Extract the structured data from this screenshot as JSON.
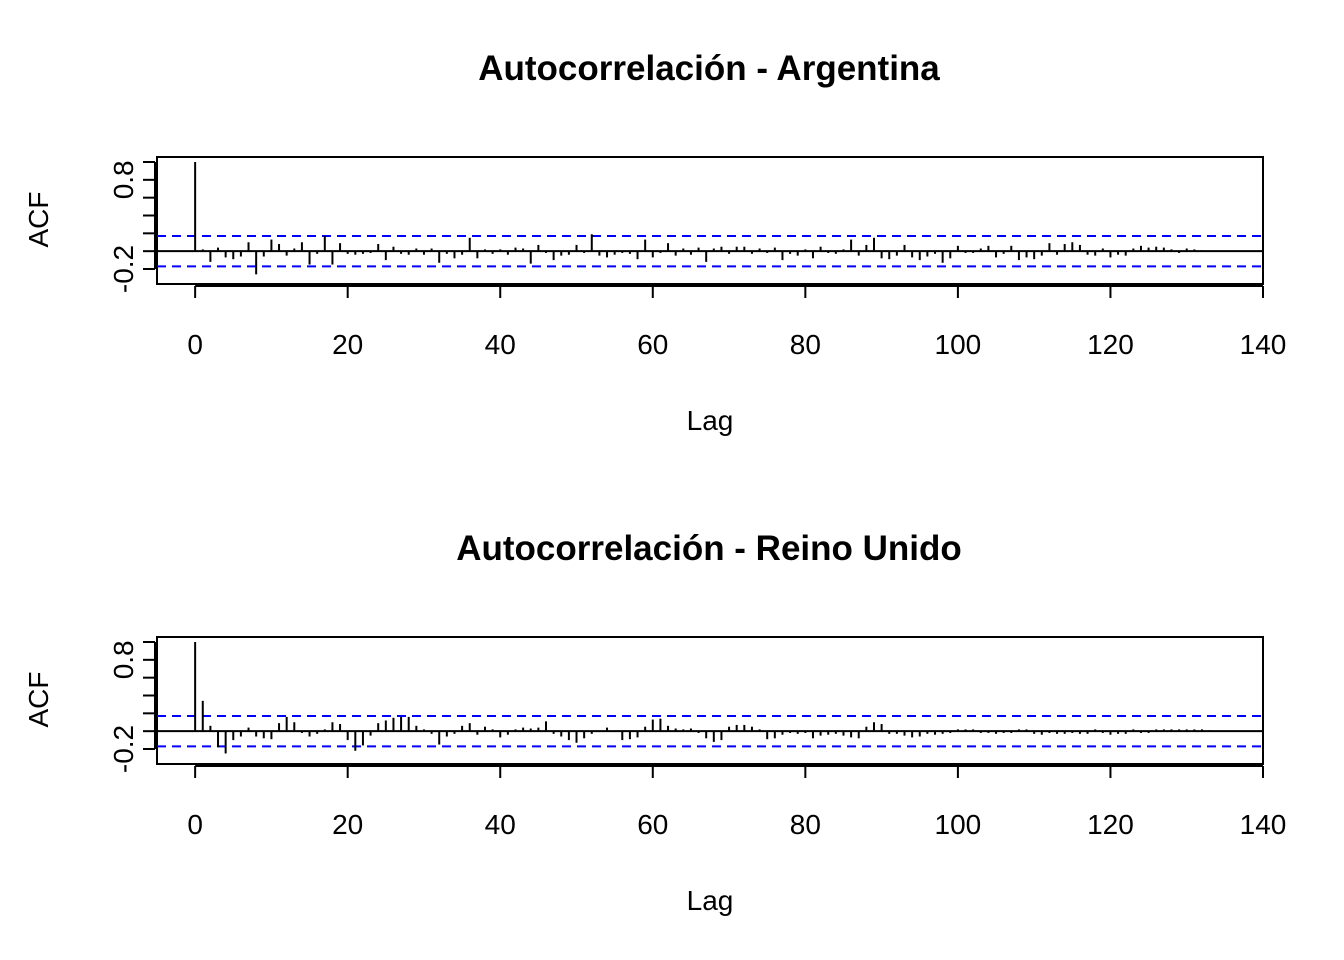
{
  "chart_data": [
    {
      "type": "bar",
      "title": "Autocorrelación - Argentina",
      "xlabel": "Lag",
      "ylabel": "ACF",
      "xlim": [
        -5,
        140
      ],
      "ylim": [
        -0.2,
        1.0
      ],
      "x_ticks": [
        "0",
        "20",
        "40",
        "60",
        "80",
        "100",
        "120",
        "140"
      ],
      "y_ticks": [
        "-0.2",
        "0.8"
      ],
      "y_minor_ticks": [
        0.0,
        0.2,
        0.4,
        0.6,
        1.0
      ],
      "grid": false,
      "zero_line": true,
      "ci_level": 0.17,
      "ci_color": "#0000ff",
      "series": [
        {
          "lags": [
            0,
            1,
            2,
            3,
            4,
            5,
            6,
            7,
            8,
            9,
            10,
            11,
            12,
            13,
            14,
            15,
            16,
            17,
            18,
            19,
            20,
            21,
            22,
            23,
            24,
            25,
            26,
            27,
            28,
            29,
            30,
            31,
            32,
            33,
            34,
            35,
            36,
            37,
            38,
            39,
            40,
            41,
            42,
            43,
            44,
            45,
            46,
            47,
            48,
            49,
            50,
            51,
            52,
            53,
            54,
            55,
            56,
            57,
            58,
            59,
            60,
            61,
            62,
            63,
            64,
            65,
            66,
            67,
            68,
            69,
            70,
            71,
            72,
            73,
            74,
            75,
            76,
            77,
            78,
            79,
            80,
            81,
            82,
            83,
            84,
            85,
            86,
            87,
            88,
            89,
            90,
            91,
            92,
            93,
            94,
            95,
            96,
            97,
            98,
            99,
            100,
            101,
            102,
            103,
            104,
            105,
            106,
            107,
            108,
            109,
            110,
            111,
            112,
            113,
            114,
            115,
            116,
            117,
            118,
            119,
            120,
            121,
            122,
            123,
            124,
            125,
            126,
            127,
            128,
            129,
            130,
            131,
            132
          ],
          "values": [
            1.0,
            0.02,
            -0.12,
            0.04,
            -0.07,
            -0.09,
            -0.06,
            0.1,
            -0.26,
            -0.06,
            0.13,
            0.08,
            -0.05,
            0.03,
            0.1,
            -0.15,
            -0.03,
            0.17,
            -0.15,
            0.09,
            -0.03,
            -0.04,
            -0.03,
            -0.02,
            0.08,
            -0.1,
            0.05,
            -0.03,
            -0.04,
            0.03,
            -0.04,
            0.03,
            -0.13,
            -0.03,
            -0.08,
            -0.04,
            0.15,
            -0.08,
            0.02,
            -0.03,
            0.02,
            -0.04,
            0.04,
            0.03,
            -0.14,
            0.07,
            -0.02,
            -0.1,
            -0.05,
            -0.04,
            0.07,
            -0.02,
            0.19,
            -0.05,
            -0.07,
            -0.04,
            -0.02,
            -0.03,
            -0.09,
            0.13,
            -0.07,
            -0.02,
            0.09,
            -0.05,
            0.03,
            -0.04,
            0.04,
            -0.12,
            0.03,
            0.05,
            -0.03,
            0.05,
            0.05,
            -0.03,
            0.03,
            -0.02,
            0.04,
            -0.1,
            -0.03,
            -0.05,
            0.02,
            -0.08,
            0.05,
            -0.02,
            -0.03,
            0.02,
            0.13,
            -0.05,
            0.07,
            0.15,
            -0.08,
            -0.09,
            -0.05,
            0.07,
            -0.07,
            -0.1,
            -0.06,
            -0.03,
            -0.13,
            -0.08,
            0.06,
            -0.02,
            -0.02,
            0.03,
            0.06,
            -0.07,
            -0.03,
            0.06,
            -0.1,
            -0.07,
            -0.09,
            -0.05,
            0.09,
            -0.04,
            0.08,
            0.1,
            0.07,
            -0.04,
            -0.05,
            0.03,
            -0.07,
            -0.04,
            -0.05,
            0.03,
            0.06,
            0.04,
            0.05,
            0.04,
            0.02,
            -0.02,
            0.03,
            0.02,
            0.01
          ]
        }
      ]
    },
    {
      "type": "bar",
      "title": "Autocorrelación - Reino Unido",
      "xlabel": "Lag",
      "ylabel": "ACF",
      "xlim": [
        -5,
        140
      ],
      "ylim": [
        -0.2,
        1.0
      ],
      "x_ticks": [
        "0",
        "20",
        "40",
        "60",
        "80",
        "100",
        "120",
        "140"
      ],
      "y_ticks": [
        "-0.2",
        "0.8"
      ],
      "y_minor_ticks": [
        0.0,
        0.2,
        0.4,
        0.6,
        1.0
      ],
      "grid": false,
      "zero_line": true,
      "ci_level": 0.17,
      "ci_color": "#0000ff",
      "series": [
        {
          "lags": [
            0,
            1,
            2,
            3,
            4,
            5,
            6,
            7,
            8,
            9,
            10,
            11,
            12,
            13,
            14,
            15,
            16,
            17,
            18,
            19,
            20,
            21,
            22,
            23,
            24,
            25,
            26,
            27,
            28,
            29,
            30,
            31,
            32,
            33,
            34,
            35,
            36,
            37,
            38,
            39,
            40,
            41,
            42,
            43,
            44,
            45,
            46,
            47,
            48,
            49,
            50,
            51,
            52,
            53,
            54,
            55,
            56,
            57,
            58,
            59,
            60,
            61,
            62,
            63,
            64,
            65,
            66,
            67,
            68,
            69,
            70,
            71,
            72,
            73,
            74,
            75,
            76,
            77,
            78,
            79,
            80,
            81,
            82,
            83,
            84,
            85,
            86,
            87,
            88,
            89,
            90,
            91,
            92,
            93,
            94,
            95,
            96,
            97,
            98,
            99,
            100,
            101,
            102,
            103,
            104,
            105,
            106,
            107,
            108,
            109,
            110,
            111,
            112,
            113,
            114,
            115,
            116,
            117,
            118,
            119,
            120,
            121,
            122,
            123,
            124,
            125,
            126,
            127,
            128,
            129,
            130,
            131,
            132,
            133
          ],
          "values": [
            1.0,
            0.34,
            0.06,
            -0.18,
            -0.25,
            -0.1,
            -0.06,
            0.04,
            -0.06,
            -0.08,
            -0.09,
            0.09,
            0.16,
            0.1,
            -0.02,
            -0.06,
            -0.03,
            0.02,
            0.1,
            0.08,
            -0.1,
            -0.22,
            -0.16,
            -0.05,
            0.09,
            0.12,
            0.15,
            0.16,
            0.16,
            0.06,
            0.02,
            -0.03,
            -0.15,
            -0.06,
            -0.03,
            0.06,
            0.09,
            -0.04,
            0.05,
            0.02,
            -0.07,
            -0.04,
            0.02,
            0.04,
            0.03,
            0.04,
            0.11,
            -0.03,
            -0.06,
            -0.1,
            -0.13,
            -0.08,
            -0.03,
            -0.01,
            0.04,
            -0.01,
            -0.1,
            -0.09,
            -0.07,
            0.05,
            0.13,
            0.14,
            0.06,
            0.03,
            0.02,
            0.03,
            -0.02,
            -0.08,
            -0.12,
            -0.1,
            0.05,
            0.07,
            0.07,
            0.05,
            0.02,
            -0.09,
            -0.08,
            -0.04,
            -0.02,
            -0.03,
            -0.02,
            -0.08,
            -0.05,
            -0.04,
            -0.03,
            -0.05,
            -0.07,
            -0.08,
            0.05,
            0.1,
            0.08,
            -0.03,
            -0.03,
            -0.05,
            -0.07,
            -0.06,
            -0.03,
            -0.04,
            -0.03,
            -0.02,
            0.02,
            0.02,
            0.02,
            -0.02,
            -0.02,
            -0.03,
            -0.02,
            -0.02,
            0.02,
            0.02,
            -0.03,
            -0.04,
            -0.02,
            -0.03,
            -0.03,
            -0.02,
            -0.03,
            -0.03,
            0.02,
            -0.02,
            -0.04,
            -0.03,
            -0.03,
            0.02,
            -0.02,
            -0.02,
            0.02,
            0.02,
            0.02,
            0.02,
            0.02,
            0.02,
            0.02,
            0.01
          ]
        }
      ]
    }
  ]
}
